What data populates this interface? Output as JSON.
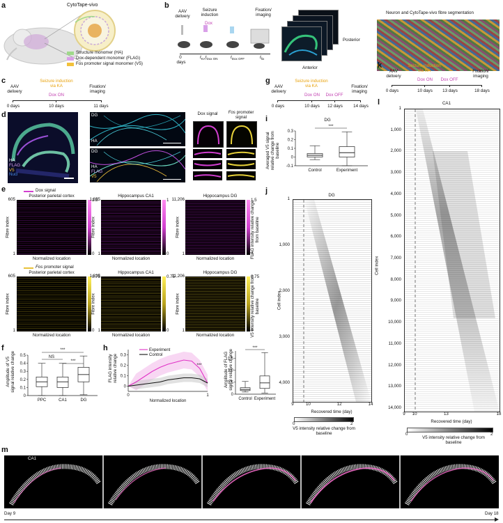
{
  "panel_letters": [
    "a",
    "b",
    "c",
    "d",
    "e",
    "f",
    "g",
    "h",
    "i",
    "j",
    "k",
    "l",
    "m"
  ],
  "a": {
    "title": "CytoTape-vivo",
    "legend": [
      {
        "label": "Structure monomer (HA)",
        "color": "#9fd98a"
      },
      {
        "label": "Dox-dependent monomer (FLAG)",
        "color": "#d9a0e8"
      },
      {
        "label": "Fos promoter signal monomer (V5)",
        "color": "#f2c13b"
      }
    ]
  },
  "b": {
    "steps": [
      "AAV delivery",
      "Seizure induction",
      "Fixation/ imaging"
    ],
    "dox": "Dox",
    "ka": "KA",
    "t0": "0",
    "t0_unit": "days",
    "t_ka": "t",
    "t_ka_sub": "KA",
    "t_doxon": "t",
    "t_doxon_sub": "Dox ON",
    "t_doxoff": "t",
    "t_doxoff_sub": "Dox OFF",
    "t_fix": "t",
    "t_fix_sub": "fix",
    "posterior": "Posterior",
    "anterior": "Anterior",
    "seg_title": "Neuron and CytoTape-vivo fibre segmentation"
  },
  "c": {
    "labels": [
      "AAV delivery",
      "Seizure induction via KA",
      "Dox ON",
      "Fixation/ imaging"
    ],
    "ticks": [
      "0 days",
      "10 days",
      "11 days"
    ]
  },
  "d": {
    "channels": [
      "HA",
      "FLAG",
      "V5",
      "Nucl"
    ],
    "dg": "DG",
    "ha": "HA",
    "merge_channels": [
      "HA",
      "FLAG",
      "V5"
    ],
    "dox_signal": "Dox signal",
    "fos_title_italic": "Fos",
    "fos_title_rest": "promoter signal"
  },
  "e": {
    "dox_legend": "Dox signal",
    "fos_legend_italic": "Fos",
    "fos_legend_rest": "promoter signal",
    "regions": [
      "Posterior parietal cortex",
      "Hippocampus CA1",
      "Hippocampus DG"
    ],
    "ymax": [
      "605",
      "1,835",
      "11,206"
    ],
    "ymin": "1",
    "ylabel": "Fibre index",
    "xlabel": "Normalized location",
    "cbar_top_dox": [
      "1.5",
      "1",
      "1.5"
    ],
    "cbar_bot": "0",
    "cbar_top_fos": [
      "0.75",
      "0.75",
      "0.75"
    ],
    "cbar_title_dox": "FLAG intensity relative change from baseline",
    "cbar_title_fos": "V5 intensity relative change from baseline"
  },
  "f": {
    "ylabel": "Amplitude of V5 signal relative change",
    "categories": [
      "PPC",
      "CA1",
      "DG"
    ],
    "yticks": [
      "0",
      "0.1",
      "0.2",
      "0.3",
      "0.4",
      "0.5"
    ],
    "ns": "NS",
    "sig": "***"
  },
  "h": {
    "ylabel": "FLAG intensity relative change",
    "xlabel": "Normalized location",
    "legend": [
      "Experiment",
      "Control"
    ],
    "yticks": [
      "0",
      "0.1",
      "0.2",
      "0.3"
    ],
    "xticks": [
      "0",
      "1"
    ],
    "sig": "***",
    "box_ylabel": "Amplitude of FLAG signal relative change",
    "box_categories": [
      "Control",
      "Experiment"
    ],
    "box_yticks": [
      "0",
      "0.5",
      "1.0",
      "1.5"
    ]
  },
  "g": {
    "labels": [
      "AAV delivery",
      "Seizure induction via KA",
      "Dox ON",
      "Dox OFF",
      "Fixation/ imaging"
    ],
    "ticks": [
      "0 days",
      "10 days",
      "12 days",
      "14 days"
    ]
  },
  "i": {
    "title": "DG",
    "ylabel": "Averaged V5 signal relative change from baseline",
    "categories": [
      "Control",
      "Experiment"
    ],
    "yticks": [
      "-0.1",
      "0",
      "0.1",
      "0.2",
      "0.3"
    ],
    "sig": "***"
  },
  "j": {
    "title": "DG",
    "ylabel": "Cell index",
    "yticks": [
      "1",
      "1,000",
      "2,000",
      "3,000",
      "4,000"
    ],
    "xticks": [
      "9",
      "10",
      "12",
      "14"
    ],
    "xlabel": "Recovered time (day)",
    "cbar_ticks": [
      "0",
      "2"
    ],
    "cbar_label": "V5 intensity relative change from baseline"
  },
  "k": {
    "labels": [
      "AAV delivery",
      "Seizure induction via KA",
      "Dox ON",
      "Dox OFF",
      "Fixation/ imaging"
    ],
    "ticks": [
      "0 days",
      "10 days",
      "13 days",
      "18 days"
    ]
  },
  "l": {
    "title": "CA1",
    "ylabel": "Cell index",
    "yticks": [
      "1",
      "1,000",
      "2,000",
      "3,000",
      "4,000",
      "5,000",
      "6,000",
      "7,000",
      "8,000",
      "9,000",
      "10,000",
      "11,000",
      "12,000",
      "13,000",
      "14,000"
    ],
    "xticks": [
      "9",
      "10",
      "13",
      "18"
    ],
    "xlabel": "Recovered time (day)",
    "cbar_ticks": [
      "0",
      "2"
    ],
    "cbar_label": "V5 intensity relative change from baseline"
  },
  "m": {
    "title": "CA1",
    "day_start": "Day 9",
    "day_end": "Day 18"
  },
  "chart_data": [
    {
      "type": "box",
      "panel": "f",
      "categories": [
        "PPC",
        "CA1",
        "DG"
      ],
      "median": [
        0.17,
        0.17,
        0.26
      ],
      "q1": [
        0.11,
        0.1,
        0.17
      ],
      "q3": [
        0.23,
        0.23,
        0.35
      ],
      "whisker_low": [
        0.0,
        0.0,
        0.01
      ],
      "whisker_high": [
        0.4,
        0.4,
        0.49
      ],
      "ylim": [
        0,
        0.5
      ]
    },
    {
      "type": "line",
      "panel": "h",
      "series": [
        {
          "name": "Experiment",
          "x": [
            0,
            0.1,
            0.2,
            0.3,
            0.4,
            0.5,
            0.6,
            0.7,
            0.8,
            0.9,
            1.0
          ],
          "y": [
            0,
            0.04,
            0.09,
            0.14,
            0.18,
            0.21,
            0.23,
            0.25,
            0.24,
            0.17,
            0.03
          ]
        },
        {
          "name": "Control",
          "x": [
            0,
            0.1,
            0.2,
            0.3,
            0.4,
            0.5,
            0.6,
            0.7,
            0.8,
            0.9,
            1.0
          ],
          "y": [
            0,
            0.01,
            0.02,
            0.03,
            0.04,
            0.06,
            0.07,
            0.08,
            0.08,
            0.07,
            0.03
          ]
        }
      ],
      "ylim": [
        -0.05,
        0.35
      ]
    },
    {
      "type": "box",
      "panel": "h-box",
      "categories": [
        "Control",
        "Experiment"
      ],
      "median": [
        0.2,
        0.47
      ],
      "q1": [
        0.15,
        0.24
      ],
      "q3": [
        0.27,
        0.76
      ],
      "whisker_low": [
        0.09,
        0.05
      ],
      "whisker_high": [
        0.53,
        1.73
      ],
      "ylim": [
        0,
        1.8
      ]
    },
    {
      "type": "box",
      "panel": "i",
      "categories": [
        "Control",
        "Experiment"
      ],
      "median": [
        0.02,
        0.05
      ],
      "q1": [
        0.0,
        0.0
      ],
      "q3": [
        0.04,
        0.12
      ],
      "whisker_low": [
        -0.03,
        -0.1
      ],
      "whisker_high": [
        0.13,
        0.29
      ],
      "ylim": [
        -0.1,
        0.3
      ]
    }
  ]
}
